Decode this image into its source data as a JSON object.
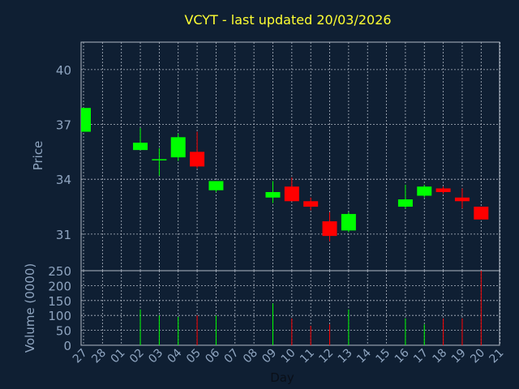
{
  "chart_data": {
    "type": "candlestick",
    "title": "VCYT - last updated 20/03/2026",
    "xlabel": "Day",
    "ylabel_price": "Price",
    "ylabel_volume": "Volume (0000)",
    "price_ylim": [
      29.0,
      41.5
    ],
    "price_ticks": [
      31,
      34,
      37,
      40
    ],
    "volume_ylim": [
      0,
      250
    ],
    "volume_ticks": [
      0,
      50,
      100,
      150,
      200,
      250
    ],
    "x_tick_labels": [
      "27",
      "28",
      "01",
      "02",
      "03",
      "04",
      "05",
      "06",
      "07",
      "08",
      "09",
      "10",
      "11",
      "12",
      "13",
      "14",
      "15",
      "16",
      "17",
      "18",
      "19",
      "20",
      "21"
    ],
    "grid": true,
    "candles": [
      {
        "day": "27",
        "open": 36.6,
        "high": 37.9,
        "low": 36.6,
        "close": 37.9,
        "volume": 0
      },
      {
        "day": "02",
        "open": 35.6,
        "high": 36.8,
        "low": 35.6,
        "close": 36.0,
        "volume": 120
      },
      {
        "day": "03",
        "open": 35.1,
        "high": 35.7,
        "low": 34.2,
        "close": 35.1,
        "volume": 100
      },
      {
        "day": "04",
        "open": 35.2,
        "high": 36.5,
        "low": 35.0,
        "close": 36.3,
        "volume": 95
      },
      {
        "day": "05",
        "open": 35.5,
        "high": 36.6,
        "low": 34.6,
        "close": 34.7,
        "volume": 100
      },
      {
        "day": "06",
        "open": 33.4,
        "high": 33.9,
        "low": 33.3,
        "close": 33.9,
        "volume": 100
      },
      {
        "day": "09",
        "open": 33.0,
        "high": 33.9,
        "low": 32.7,
        "close": 33.3,
        "volume": 140
      },
      {
        "day": "10",
        "open": 33.6,
        "high": 34.1,
        "low": 32.8,
        "close": 32.8,
        "volume": 90
      },
      {
        "day": "11",
        "open": 32.8,
        "high": 33.0,
        "low": 32.3,
        "close": 32.5,
        "volume": 65
      },
      {
        "day": "12",
        "open": 31.7,
        "high": 32.2,
        "low": 30.6,
        "close": 30.9,
        "volume": 70
      },
      {
        "day": "13",
        "open": 31.2,
        "high": 32.2,
        "low": 31.1,
        "close": 32.1,
        "volume": 120
      },
      {
        "day": "16",
        "open": 32.5,
        "high": 33.7,
        "low": 32.4,
        "close": 32.9,
        "volume": 90
      },
      {
        "day": "17",
        "open": 33.1,
        "high": 33.7,
        "low": 33.0,
        "close": 33.6,
        "volume": 70
      },
      {
        "day": "18",
        "open": 33.5,
        "high": 33.6,
        "low": 33.2,
        "close": 33.3,
        "volume": 90
      },
      {
        "day": "19",
        "open": 33.0,
        "high": 33.5,
        "low": 32.4,
        "close": 32.8,
        "volume": 90
      },
      {
        "day": "20",
        "open": 32.5,
        "high": 32.5,
        "low": 31.8,
        "close": 31.8,
        "volume": 250
      }
    ],
    "colors": {
      "background": "#0f1f33",
      "plot_background": "#0f1f33",
      "grid": "#b0b8c4",
      "axis_text": "#8fa5c0",
      "title": "#ffff33",
      "up": "#00ff00",
      "down": "#ff0000"
    }
  }
}
